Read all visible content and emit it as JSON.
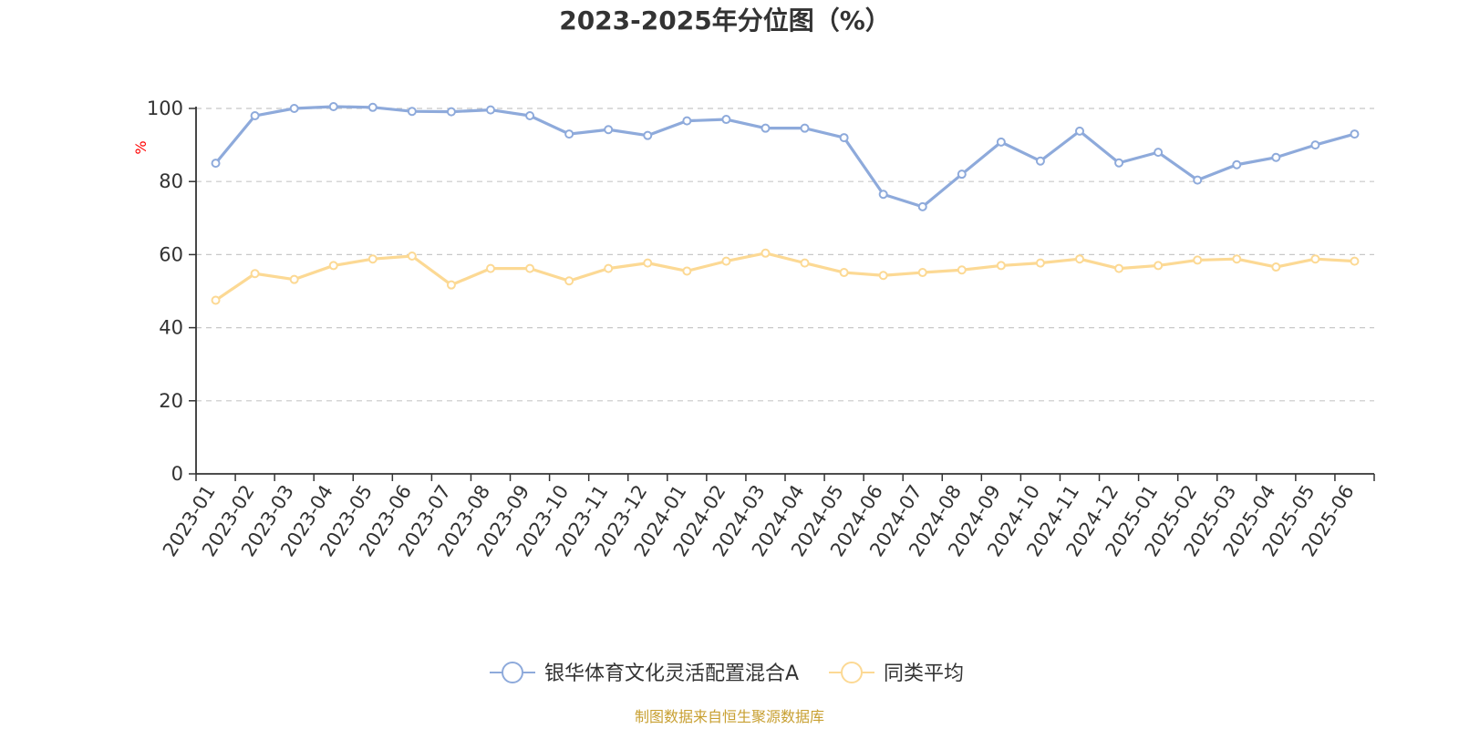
{
  "chart_data": {
    "type": "line",
    "title": "2023-2025年分位图（%）",
    "ylabel": "%",
    "xlabel": "",
    "ylim": [
      0,
      100
    ],
    "yticks": [
      0,
      20,
      40,
      60,
      80,
      100
    ],
    "grid": true,
    "legend_position": "bottom-center",
    "categories": [
      "2023-01",
      "2023-02",
      "2023-03",
      "2023-04",
      "2023-05",
      "2023-06",
      "2023-07",
      "2023-08",
      "2023-09",
      "2023-10",
      "2023-11",
      "2023-12",
      "2024-01",
      "2024-02",
      "2024-03",
      "2024-04",
      "2024-05",
      "2024-06",
      "2024-07",
      "2024-08",
      "2024-09",
      "2024-10",
      "2024-11",
      "2024-12",
      "2025-01",
      "2025-02",
      "2025-03",
      "2025-04",
      "2025-05",
      "2025-06"
    ],
    "series": [
      {
        "name": "银华体育文化灵活配置混合A",
        "color": "#8eaadb",
        "values": [
          85,
          98,
          100,
          100.5,
          100.3,
          99.2,
          99.1,
          99.6,
          98,
          93,
          94.2,
          92.6,
          96.6,
          97,
          94.6,
          94.6,
          92,
          76.5,
          73.1,
          82,
          90.8,
          85.6,
          93.8,
          85.1,
          88,
          80.4,
          84.6,
          86.6,
          90,
          93
        ]
      },
      {
        "name": "同类平均",
        "color": "#fcd994",
        "values": [
          47.5,
          54.8,
          53.2,
          57,
          58.8,
          59.6,
          51.7,
          56.2,
          56.2,
          52.8,
          56.2,
          57.7,
          55.5,
          58.2,
          60.4,
          57.7,
          55.1,
          54.3,
          55.1,
          55.8,
          57,
          57.7,
          58.8,
          56.2,
          57,
          58.5,
          58.8,
          56.6,
          58.8,
          58.2
        ]
      }
    ],
    "axis_color": "#333333",
    "grid_color": "#c8c8c8",
    "ylabel_color": "#ff0000"
  },
  "footer": {
    "text": "制图数据来自恒生聚源数据库",
    "color": "#c8a032"
  }
}
